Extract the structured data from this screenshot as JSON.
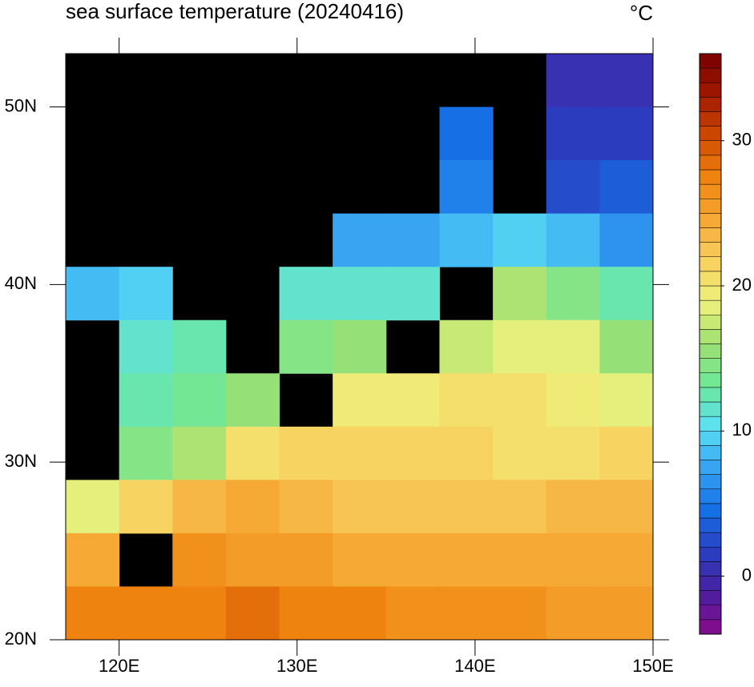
{
  "chart_data": {
    "type": "gridmap",
    "title": "sea surface temperature (20240416)",
    "unit": "°C",
    "xlim": [
      117,
      150
    ],
    "ylim": [
      20,
      53
    ],
    "xticks": [
      {
        "value": 120,
        "label": "120E"
      },
      {
        "value": 130,
        "label": "130E"
      },
      {
        "value": 140,
        "label": "140E"
      },
      {
        "value": 150,
        "label": "150E"
      }
    ],
    "yticks": [
      {
        "value": 20,
        "label": "20N"
      },
      {
        "value": 30,
        "label": "30N"
      },
      {
        "value": 40,
        "label": "40N"
      },
      {
        "value": 50,
        "label": "50N"
      }
    ],
    "x": [
      118.5,
      121.5,
      124.5,
      127.5,
      130.5,
      133.5,
      136.5,
      139.5,
      142.5,
      145.5,
      148.5
    ],
    "y": [
      51.5,
      48.5,
      45.5,
      42.5,
      39.5,
      36.5,
      33.5,
      30.5,
      27.5,
      24.5,
      21.5
    ],
    "values": [
      [
        null,
        null,
        null,
        null,
        null,
        null,
        null,
        null,
        null,
        0,
        0
      ],
      [
        null,
        null,
        null,
        null,
        null,
        null,
        null,
        4,
        null,
        1,
        1
      ],
      [
        null,
        null,
        null,
        null,
        null,
        null,
        null,
        5,
        null,
        2,
        3
      ],
      [
        null,
        null,
        null,
        null,
        null,
        7,
        7,
        8,
        9,
        8,
        6
      ],
      [
        8,
        9,
        null,
        null,
        11,
        11,
        11,
        null,
        16,
        14,
        12
      ],
      [
        null,
        11,
        12,
        null,
        14,
        15,
        null,
        17,
        18,
        18,
        15
      ],
      [
        null,
        12,
        13,
        15,
        null,
        19,
        19,
        20,
        20,
        19,
        18
      ],
      [
        null,
        14,
        16,
        20,
        21,
        21,
        21,
        21,
        20,
        20,
        21
      ],
      [
        18,
        21,
        23,
        24,
        23,
        22,
        22,
        22,
        22,
        23,
        23
      ],
      [
        24,
        null,
        26,
        25,
        25,
        24,
        24,
        24,
        24,
        24,
        24
      ],
      [
        27,
        27,
        27,
        28,
        27,
        27,
        26,
        26,
        26,
        25,
        25
      ]
    ],
    "land_color": "#000000",
    "clim": [
      -4,
      36
    ],
    "cticks": [
      0,
      10,
      20,
      30
    ],
    "colormap": [
      "#8a0a8a",
      "#4a1fa0",
      "#2a3ec0",
      "#1670e6",
      "#38a4f2",
      "#5ae0f4",
      "#6ee89a",
      "#9ee070",
      "#eef27c",
      "#f8d060",
      "#f6a834",
      "#f08410",
      "#d04a00",
      "#a01800",
      "#780000"
    ]
  }
}
